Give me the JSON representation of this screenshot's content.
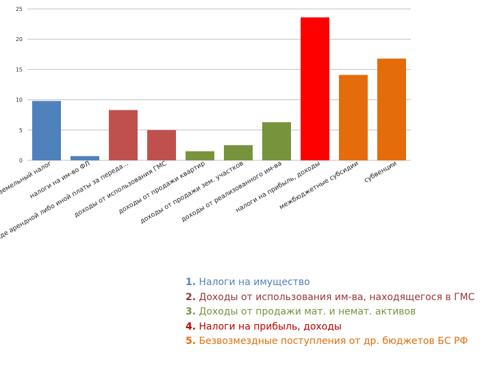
{
  "chart_data": {
    "type": "bar",
    "ylim": [
      0,
      25
    ],
    "yticks": [
      "0",
      "5",
      "10",
      "15",
      "20",
      "25"
    ],
    "grid": true,
    "categories": [
      "земельный налог",
      "налоги на им-во ФЛ",
      "прочие доходы от использования им-ва в виде арендной либо иной платы за переда...",
      "доходы от использования ГМС",
      "доходы от продажи квартир",
      "доходы от продажи зем. участков",
      "доходы от реализованного им-ва",
      "налоги на прибыль, доходы",
      "межбюджетные субсидии",
      "субвенции"
    ],
    "values": [
      9.8,
      0.7,
      8.3,
      5.0,
      1.5,
      2.5,
      6.3,
      23.6,
      14.1,
      16.8
    ],
    "colors": [
      "#4F81BD",
      "#4F81BD",
      "#C0504D",
      "#C0504D",
      "#77933C",
      "#77933C",
      "#77933C",
      "#FF0000",
      "#E46C0A",
      "#E46C0A"
    ]
  },
  "legend": [
    {
      "num": "1.",
      "text": " Налоги на имущество",
      "color": "#4F81BD"
    },
    {
      "num": "2.",
      "text": " Доходы от использования им-ва, находящегося в ГМС",
      "color": "#953735"
    },
    {
      "num": "3.",
      "text": " Доходы от продажи мат. и немат. активов",
      "color": "#77933C"
    },
    {
      "num": "4.",
      "text": " Налоги на прибыль, доходы",
      "color": "#C00000"
    },
    {
      "num": "5.",
      "text": "  Безвозмездные поступления от др. бюджетов БС РФ",
      "color": "#E46C0A"
    }
  ]
}
